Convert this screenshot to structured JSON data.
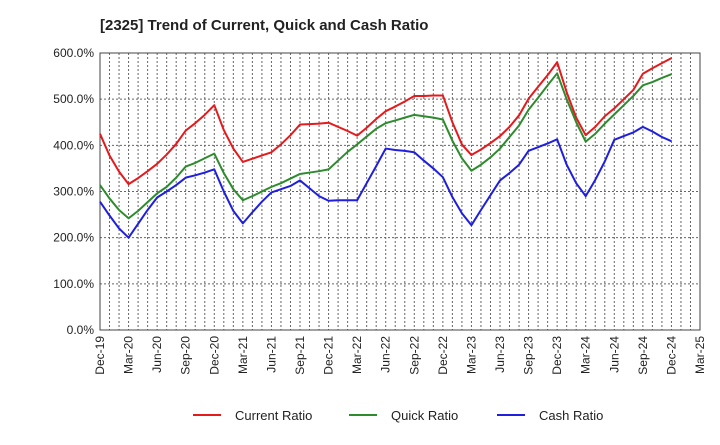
{
  "chart_data": {
    "type": "line",
    "title": "[2325]  Trend of Current, Quick and Cash Ratio",
    "xlabel": "",
    "ylabel": "",
    "ylim": [
      0,
      600
    ],
    "y_ticks": [
      0,
      100,
      200,
      300,
      400,
      500,
      600
    ],
    "y_tick_labels": [
      "0.0%",
      "100.0%",
      "200.0%",
      "300.0%",
      "400.0%",
      "500.0%",
      "600.0%"
    ],
    "x_tick_labels": [
      "Dec-19",
      "Mar-20",
      "Jun-20",
      "Sep-20",
      "Dec-20",
      "Mar-21",
      "Jun-21",
      "Sep-21",
      "Dec-21",
      "Mar-22",
      "Jun-22",
      "Sep-22",
      "Dec-22",
      "Mar-23",
      "Jun-23",
      "Sep-23",
      "Dec-23",
      "Mar-24",
      "Jun-24",
      "Sep-24",
      "Dec-24",
      "Mar-25"
    ],
    "grid": true,
    "legend_position": "bottom",
    "series": [
      {
        "name": "Current Ratio",
        "color": "#e41a1c",
        "values": [
          [
            0,
            425
          ],
          [
            1,
            378
          ],
          [
            2,
            343
          ],
          [
            3,
            316
          ],
          [
            4,
            329
          ],
          [
            5,
            344
          ],
          [
            6,
            360
          ],
          [
            7,
            380
          ],
          [
            8,
            403
          ],
          [
            9,
            432
          ],
          [
            10,
            448
          ],
          [
            11,
            466
          ],
          [
            12,
            487
          ],
          [
            13,
            433
          ],
          [
            14,
            393
          ],
          [
            15,
            364
          ],
          [
            16,
            371
          ],
          [
            17,
            378
          ],
          [
            18,
            385
          ],
          [
            19,
            402
          ],
          [
            20,
            422
          ],
          [
            21,
            445
          ],
          [
            22,
            446
          ],
          [
            23,
            447
          ],
          [
            24,
            449
          ],
          [
            25,
            440
          ],
          [
            26,
            431
          ],
          [
            27,
            421
          ],
          [
            28,
            438
          ],
          [
            29,
            457
          ],
          [
            30,
            474
          ],
          [
            31,
            484
          ],
          [
            32,
            495
          ],
          [
            33,
            507
          ],
          [
            34,
            507
          ],
          [
            35,
            508
          ],
          [
            36,
            508
          ],
          [
            37,
            450
          ],
          [
            38,
            402
          ],
          [
            39,
            379
          ],
          [
            40,
            391
          ],
          [
            41,
            405
          ],
          [
            42,
            420
          ],
          [
            43,
            440
          ],
          [
            44,
            465
          ],
          [
            45,
            501
          ],
          [
            46,
            527
          ],
          [
            47,
            552
          ],
          [
            48,
            580
          ],
          [
            49,
            515
          ],
          [
            50,
            460
          ],
          [
            51,
            422
          ],
          [
            52,
            440
          ],
          [
            53,
            463
          ],
          [
            54,
            480
          ],
          [
            55,
            500
          ],
          [
            56,
            520
          ],
          [
            57,
            555
          ],
          [
            58,
            567
          ],
          [
            59,
            578
          ],
          [
            60,
            589
          ]
        ]
      },
      {
        "name": "Quick Ratio",
        "color": "#2e8b2e",
        "values": [
          [
            0,
            314
          ],
          [
            1,
            285
          ],
          [
            2,
            260
          ],
          [
            3,
            242
          ],
          [
            4,
            258
          ],
          [
            5,
            277
          ],
          [
            6,
            296
          ],
          [
            7,
            310
          ],
          [
            8,
            330
          ],
          [
            9,
            354
          ],
          [
            10,
            362
          ],
          [
            11,
            372
          ],
          [
            12,
            382
          ],
          [
            13,
            340
          ],
          [
            14,
            305
          ],
          [
            15,
            281
          ],
          [
            16,
            290
          ],
          [
            17,
            300
          ],
          [
            18,
            310
          ],
          [
            19,
            318
          ],
          [
            20,
            328
          ],
          [
            21,
            338
          ],
          [
            22,
            341
          ],
          [
            23,
            344
          ],
          [
            24,
            348
          ],
          [
            25,
            367
          ],
          [
            26,
            386
          ],
          [
            27,
            402
          ],
          [
            28,
            419
          ],
          [
            29,
            436
          ],
          [
            30,
            448
          ],
          [
            31,
            454
          ],
          [
            32,
            460
          ],
          [
            33,
            466
          ],
          [
            34,
            463
          ],
          [
            35,
            460
          ],
          [
            36,
            456
          ],
          [
            37,
            410
          ],
          [
            38,
            372
          ],
          [
            39,
            345
          ],
          [
            40,
            358
          ],
          [
            41,
            374
          ],
          [
            42,
            393
          ],
          [
            43,
            418
          ],
          [
            44,
            443
          ],
          [
            45,
            477
          ],
          [
            46,
            503
          ],
          [
            47,
            530
          ],
          [
            48,
            556
          ],
          [
            49,
            500
          ],
          [
            50,
            450
          ],
          [
            51,
            408
          ],
          [
            52,
            425
          ],
          [
            53,
            447
          ],
          [
            54,
            467
          ],
          [
            55,
            487
          ],
          [
            56,
            507
          ],
          [
            57,
            530
          ],
          [
            58,
            537
          ],
          [
            59,
            546
          ],
          [
            60,
            554
          ]
        ]
      },
      {
        "name": "Cash Ratio",
        "color": "#1f1fdd",
        "values": [
          [
            0,
            278
          ],
          [
            1,
            248
          ],
          [
            2,
            220
          ],
          [
            3,
            200
          ],
          [
            4,
            230
          ],
          [
            5,
            260
          ],
          [
            6,
            287
          ],
          [
            7,
            300
          ],
          [
            8,
            314
          ],
          [
            9,
            330
          ],
          [
            10,
            335
          ],
          [
            11,
            341
          ],
          [
            12,
            348
          ],
          [
            13,
            300
          ],
          [
            14,
            258
          ],
          [
            15,
            231
          ],
          [
            16,
            255
          ],
          [
            17,
            278
          ],
          [
            18,
            298
          ],
          [
            19,
            305
          ],
          [
            20,
            312
          ],
          [
            21,
            324
          ],
          [
            22,
            307
          ],
          [
            23,
            290
          ],
          [
            24,
            280
          ],
          [
            25,
            281
          ],
          [
            26,
            281
          ],
          [
            27,
            281
          ],
          [
            28,
            318
          ],
          [
            29,
            355
          ],
          [
            30,
            393
          ],
          [
            31,
            390
          ],
          [
            32,
            388
          ],
          [
            33,
            385
          ],
          [
            34,
            367
          ],
          [
            35,
            350
          ],
          [
            36,
            331
          ],
          [
            37,
            288
          ],
          [
            38,
            253
          ],
          [
            39,
            227
          ],
          [
            40,
            260
          ],
          [
            41,
            292
          ],
          [
            42,
            324
          ],
          [
            43,
            340
          ],
          [
            44,
            358
          ],
          [
            45,
            388
          ],
          [
            46,
            396
          ],
          [
            47,
            404
          ],
          [
            48,
            413
          ],
          [
            49,
            358
          ],
          [
            50,
            318
          ],
          [
            51,
            290
          ],
          [
            52,
            325
          ],
          [
            53,
            365
          ],
          [
            54,
            412
          ],
          [
            55,
            420
          ],
          [
            56,
            428
          ],
          [
            57,
            440
          ],
          [
            58,
            430
          ],
          [
            59,
            418
          ],
          [
            60,
            409
          ]
        ]
      }
    ]
  }
}
